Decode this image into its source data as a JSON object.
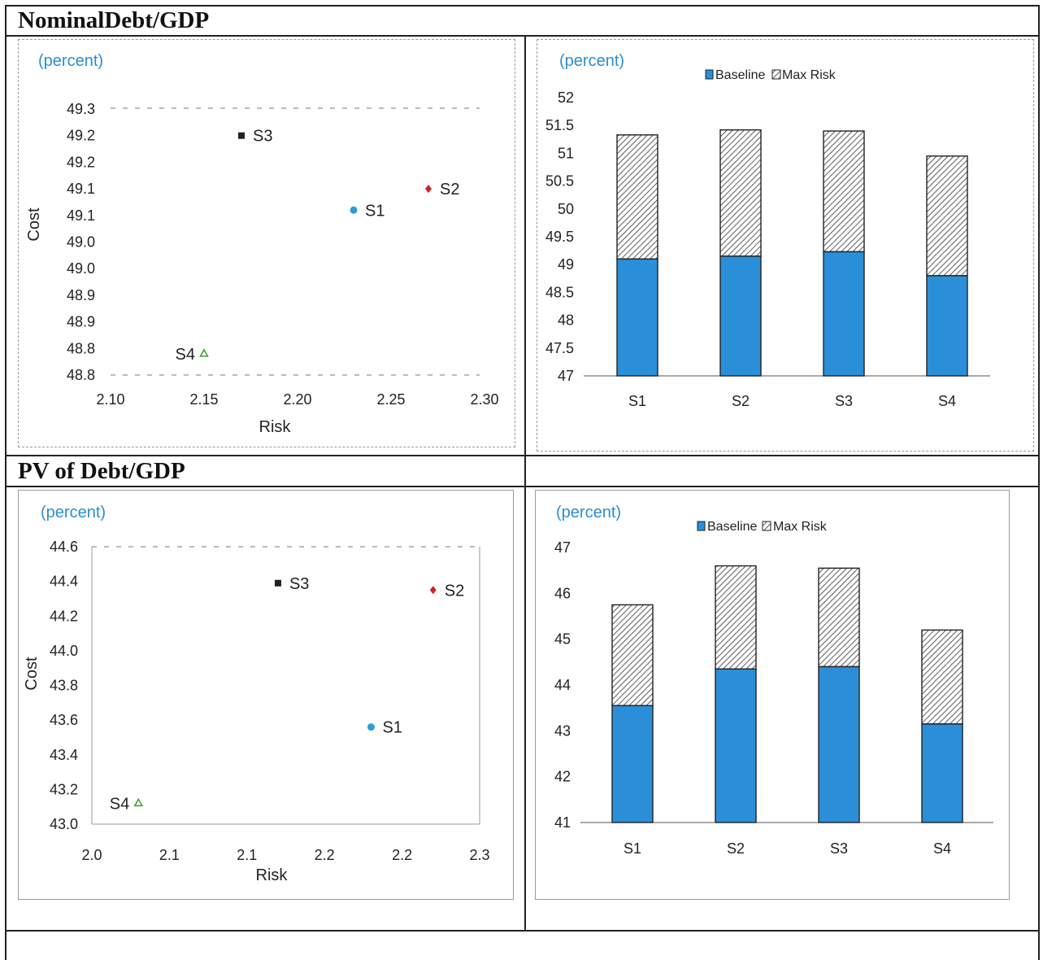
{
  "chart_data": [
    {
      "type": "scatter",
      "section_title": "NominalDebt/GDP",
      "unit_label": "(percent)",
      "xlabel": "Risk",
      "ylabel": "Cost",
      "x_ticks": [
        "2.10",
        "2.15",
        "2.20",
        "2.25",
        "2.30"
      ],
      "y_ticks": [
        "49.3",
        "49.2",
        "49.2",
        "49.1",
        "49.1",
        "49.0",
        "49.0",
        "48.9",
        "48.9",
        "48.8",
        "48.8"
      ],
      "xlim": [
        2.1,
        2.3
      ],
      "ylim": [
        48.8,
        49.3
      ],
      "points": [
        {
          "label": "S1",
          "x": 2.23,
          "y": 49.11,
          "color": "#2a9fd8",
          "marker": "circle"
        },
        {
          "label": "S2",
          "x": 2.27,
          "y": 49.15,
          "color": "#d42020",
          "marker": "diamond"
        },
        {
          "label": "S3",
          "x": 2.17,
          "y": 49.25,
          "color": "#222222",
          "marker": "square"
        },
        {
          "label": "S4",
          "x": 2.15,
          "y": 48.84,
          "color": "#39a02a",
          "marker": "triangle"
        }
      ]
    },
    {
      "type": "bar",
      "unit_label": "(percent)",
      "categories": [
        "S1",
        "S2",
        "S3",
        "S4"
      ],
      "y_ticks": [
        "52",
        "51.5",
        "51",
        "50.5",
        "50",
        "49.5",
        "49",
        "48.5",
        "48",
        "47.5",
        "47"
      ],
      "ylim": [
        47,
        52
      ],
      "legend_position": "top",
      "series": [
        {
          "name": "Baseline",
          "values": [
            49.1,
            49.15,
            49.23,
            48.8
          ]
        },
        {
          "name": "Max Risk",
          "values": [
            51.33,
            51.42,
            51.4,
            50.95
          ]
        }
      ],
      "colors": {
        "baseline": "#2a8fd8",
        "maxrisk_fill": "#ffffff",
        "maxrisk_hatch": "#333333"
      }
    },
    {
      "type": "scatter",
      "section_title": "PV of Debt/GDP",
      "unit_label": "(percent)",
      "xlabel": "Risk",
      "ylabel": "Cost",
      "x_ticks": [
        "2.0",
        "2.1",
        "2.1",
        "2.2",
        "2.2",
        "2.3"
      ],
      "y_ticks": [
        "44.6",
        "44.4",
        "44.2",
        "44.0",
        "43.8",
        "43.6",
        "43.4",
        "43.2",
        "43.0"
      ],
      "xlim": [
        2.0,
        2.25
      ],
      "ylim": [
        43.0,
        44.6
      ],
      "points": [
        {
          "label": "S1",
          "x": 2.18,
          "y": 43.56,
          "color": "#2a9fd8",
          "marker": "circle"
        },
        {
          "label": "S2",
          "x": 2.22,
          "y": 44.35,
          "color": "#d42020",
          "marker": "diamond"
        },
        {
          "label": "S3",
          "x": 2.12,
          "y": 44.39,
          "color": "#222222",
          "marker": "square"
        },
        {
          "label": "S4",
          "x": 2.03,
          "y": 43.12,
          "color": "#39a02a",
          "marker": "triangle"
        }
      ]
    },
    {
      "type": "bar",
      "unit_label": "(percent)",
      "categories": [
        "S1",
        "S2",
        "S3",
        "S4"
      ],
      "y_ticks": [
        "47",
        "46",
        "45",
        "44",
        "43",
        "42",
        "41"
      ],
      "ylim": [
        41,
        47
      ],
      "legend_position": "top",
      "series": [
        {
          "name": "Baseline",
          "values": [
            43.55,
            44.35,
            44.4,
            43.15
          ]
        },
        {
          "name": "Max Risk",
          "values": [
            45.75,
            46.6,
            46.55,
            45.2
          ]
        }
      ],
      "colors": {
        "baseline": "#2a8fd8",
        "maxrisk_fill": "#ffffff",
        "maxrisk_hatch": "#333333"
      }
    }
  ]
}
